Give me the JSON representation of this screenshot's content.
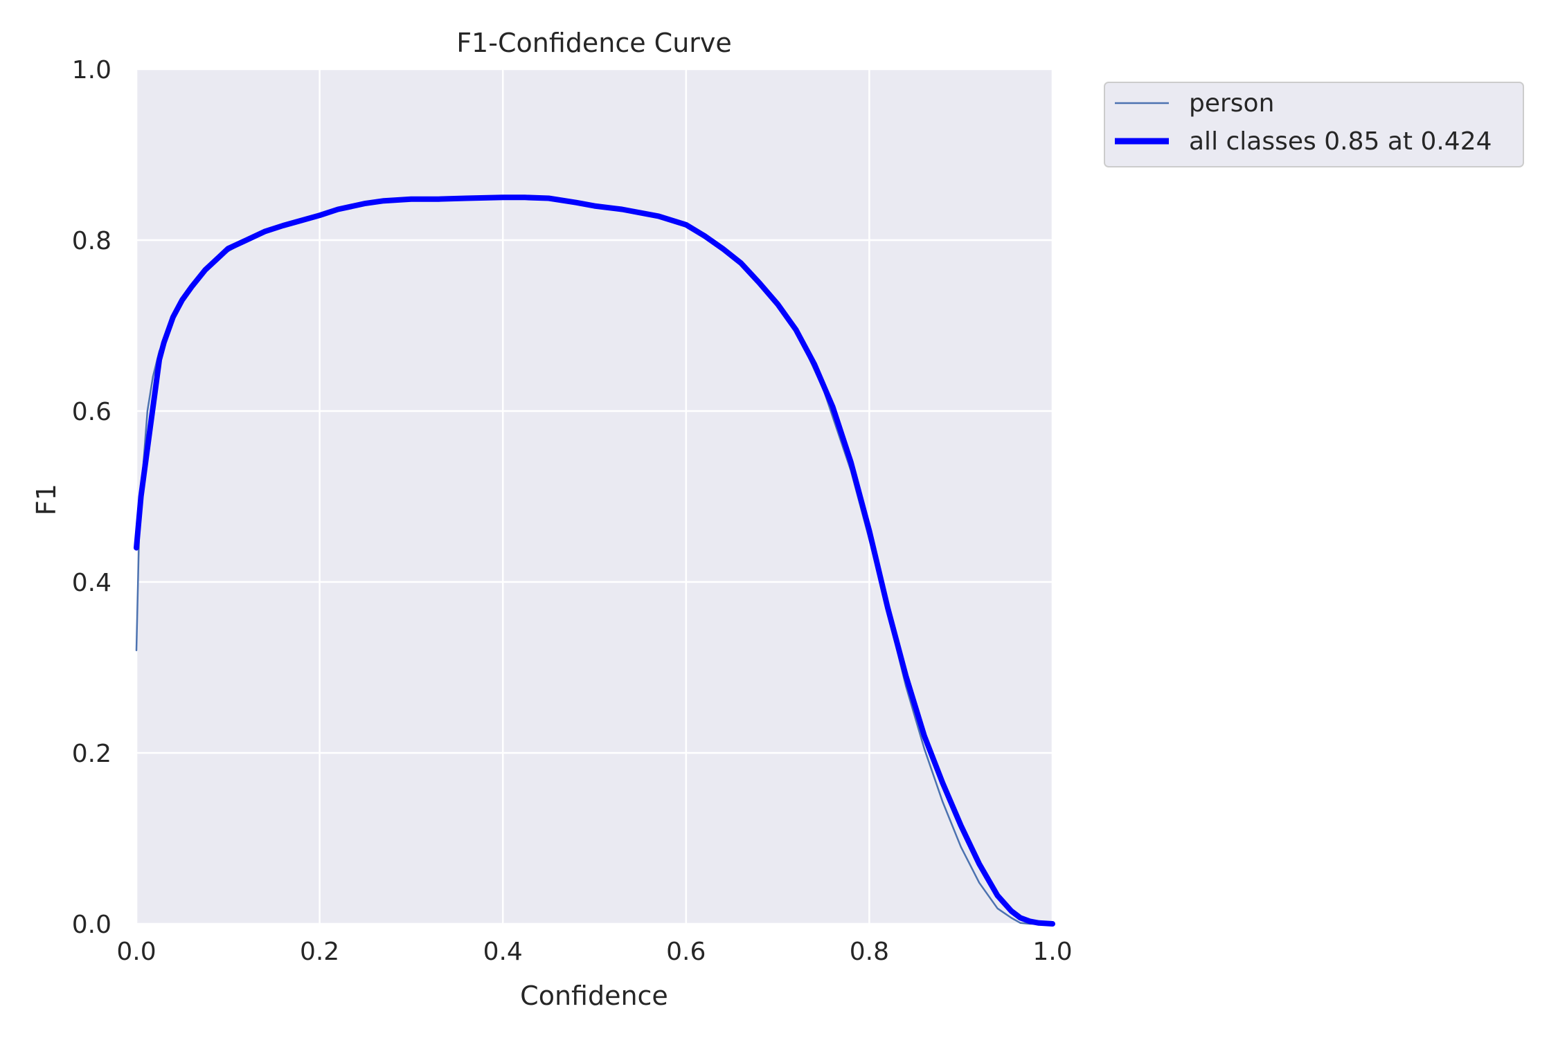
{
  "chart_data": {
    "type": "line",
    "title": "F1-Confidence Curve",
    "xlabel": "Confidence",
    "ylabel": "F1",
    "xlim": [
      0,
      1
    ],
    "ylim": [
      0,
      1
    ],
    "xticks": [
      "0.0",
      "0.2",
      "0.4",
      "0.6",
      "0.8",
      "1.0"
    ],
    "yticks": [
      "0.0",
      "0.2",
      "0.4",
      "0.6",
      "0.8",
      "1.0"
    ],
    "grid": true,
    "legend_position": "outside-top-right",
    "series": [
      {
        "name": "person",
        "color": "#4c72b0",
        "x": [
          0.0,
          0.003,
          0.007,
          0.012,
          0.018,
          0.025,
          0.033,
          0.045,
          0.06,
          0.08,
          0.1,
          0.13,
          0.16,
          0.2,
          0.25,
          0.28,
          0.32,
          0.36,
          0.4,
          0.43,
          0.46,
          0.5,
          0.53,
          0.57,
          0.6,
          0.63,
          0.66,
          0.69,
          0.72,
          0.75,
          0.78,
          0.8,
          0.82,
          0.84,
          0.86,
          0.88,
          0.9,
          0.92,
          0.94,
          0.955,
          0.965,
          0.975,
          0.99,
          1.0
        ],
        "y": [
          0.32,
          0.46,
          0.53,
          0.6,
          0.64,
          0.67,
          0.69,
          0.72,
          0.745,
          0.77,
          0.787,
          0.805,
          0.818,
          0.83,
          0.843,
          0.847,
          0.848,
          0.849,
          0.85,
          0.85,
          0.846,
          0.84,
          0.835,
          0.826,
          0.816,
          0.799,
          0.774,
          0.739,
          0.695,
          0.625,
          0.53,
          0.45,
          0.365,
          0.278,
          0.205,
          0.143,
          0.09,
          0.048,
          0.018,
          0.007,
          0.001,
          0.0,
          0.0,
          0.0
        ]
      },
      {
        "name": "all classes 0.85 at 0.424",
        "color": "#0000ff",
        "x": [
          0.0,
          0.005,
          0.01,
          0.015,
          0.02,
          0.025,
          0.03,
          0.04,
          0.05,
          0.06,
          0.075,
          0.09,
          0.1,
          0.12,
          0.14,
          0.16,
          0.18,
          0.2,
          0.22,
          0.25,
          0.27,
          0.3,
          0.33,
          0.36,
          0.4,
          0.424,
          0.45,
          0.48,
          0.5,
          0.53,
          0.57,
          0.6,
          0.62,
          0.64,
          0.66,
          0.68,
          0.7,
          0.72,
          0.74,
          0.76,
          0.78,
          0.8,
          0.82,
          0.84,
          0.86,
          0.88,
          0.9,
          0.92,
          0.94,
          0.955,
          0.965,
          0.975,
          0.985,
          1.0
        ],
        "y": [
          0.44,
          0.5,
          0.54,
          0.58,
          0.62,
          0.66,
          0.68,
          0.71,
          0.73,
          0.745,
          0.765,
          0.78,
          0.79,
          0.8,
          0.81,
          0.817,
          0.823,
          0.829,
          0.836,
          0.843,
          0.846,
          0.848,
          0.848,
          0.849,
          0.85,
          0.85,
          0.849,
          0.844,
          0.84,
          0.836,
          0.828,
          0.818,
          0.805,
          0.79,
          0.773,
          0.75,
          0.725,
          0.695,
          0.655,
          0.605,
          0.54,
          0.46,
          0.37,
          0.29,
          0.22,
          0.165,
          0.115,
          0.07,
          0.033,
          0.015,
          0.007,
          0.003,
          0.001,
          0.0
        ]
      }
    ]
  }
}
